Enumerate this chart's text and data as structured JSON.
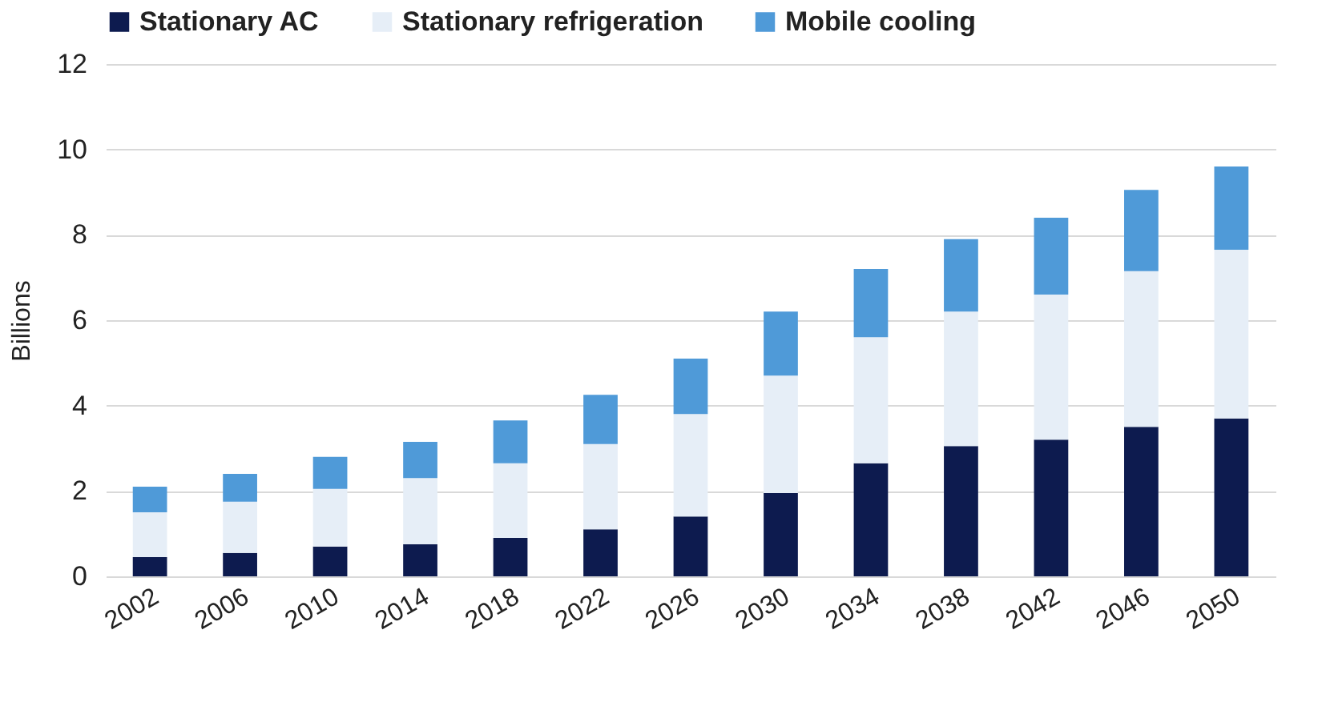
{
  "chart_data": {
    "type": "bar",
    "stacked": true,
    "ylabel": "Billions",
    "categories": [
      "2002",
      "2006",
      "2010",
      "2014",
      "2018",
      "2022",
      "2026",
      "2030",
      "2034",
      "2038",
      "2042",
      "2046",
      "2050"
    ],
    "series": [
      {
        "name": "Stationary AC",
        "color": "#0d1b4f",
        "values": [
          0.45,
          0.55,
          0.7,
          0.75,
          0.9,
          1.1,
          1.4,
          1.95,
          2.65,
          3.05,
          3.2,
          3.5,
          3.7
        ]
      },
      {
        "name": "Stationary refrigeration",
        "color": "#e6eef7",
        "values": [
          1.05,
          1.2,
          1.35,
          1.55,
          1.75,
          2.0,
          2.4,
          2.75,
          2.95,
          3.15,
          3.4,
          3.65,
          3.95
        ]
      },
      {
        "name": "Mobile cooling",
        "color": "#4f9ad8",
        "values": [
          0.6,
          0.65,
          0.75,
          0.85,
          1.0,
          1.15,
          1.3,
          1.5,
          1.6,
          1.7,
          1.8,
          1.9,
          1.95
        ]
      }
    ],
    "ylim": [
      0,
      12
    ],
    "yticks": [
      0,
      2,
      4,
      6,
      8,
      10,
      12
    ],
    "grid": "y",
    "legend": "top"
  }
}
